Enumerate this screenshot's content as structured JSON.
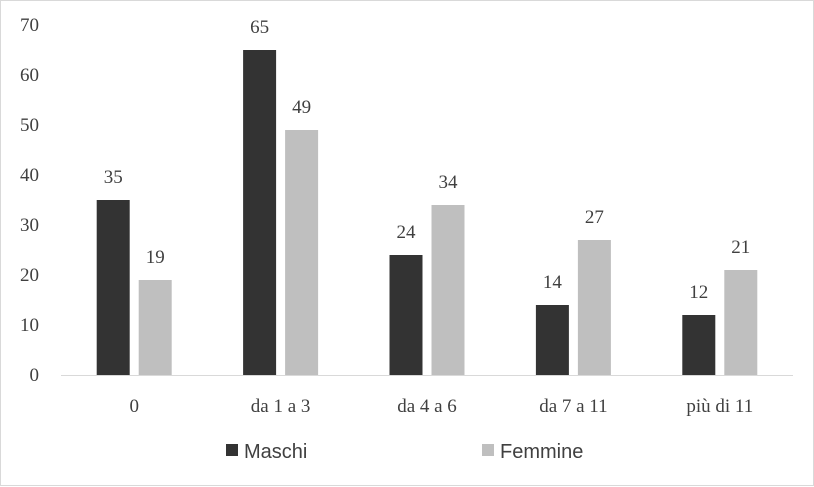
{
  "chart_data": {
    "type": "bar",
    "categories": [
      "0",
      "da 1 a 3",
      "da 4 a 6",
      "da 7 a 11",
      "più di 11"
    ],
    "series": [
      {
        "name": "Maschi",
        "values": [
          35,
          65,
          24,
          14,
          12
        ],
        "color": "#333333"
      },
      {
        "name": "Femmine",
        "values": [
          19,
          49,
          34,
          27,
          21
        ],
        "color": "#bfbfbf"
      }
    ],
    "ylim": [
      0,
      70
    ],
    "yticks": [
      0,
      10,
      20,
      30,
      40,
      50,
      60,
      70
    ],
    "grid": false,
    "data_labels": true,
    "legend": "bottom"
  }
}
